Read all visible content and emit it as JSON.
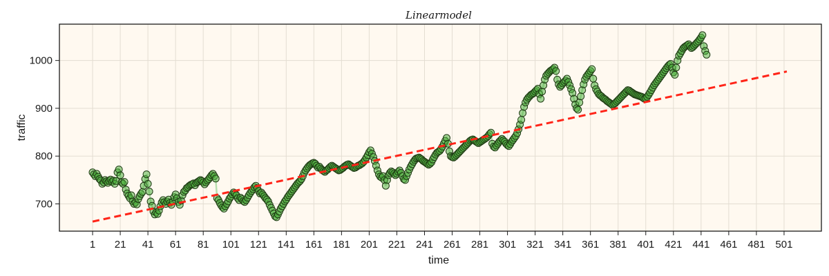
{
  "chart_data": {
    "type": "scatter",
    "title": "Linearmodel",
    "xlabel": "time",
    "ylabel": "traffic",
    "xlim": [
      -23,
      528
    ],
    "ylim": [
      643,
      1076
    ],
    "xticks": [
      1,
      21,
      41,
      61,
      81,
      101,
      121,
      141,
      161,
      181,
      201,
      221,
      241,
      261,
      281,
      301,
      321,
      341,
      361,
      381,
      401,
      421,
      441,
      461,
      481,
      501
    ],
    "yticks": [
      700,
      800,
      900,
      1000
    ],
    "grid": true,
    "background": "#fff9f0",
    "series": [
      {
        "kind": "line-markers",
        "marker_color": "#4caf3c",
        "line_color": "#9fd69a",
        "x_start": 1,
        "values": [
          766,
          762,
          758,
          763,
          757,
          752,
          749,
          742,
          745,
          750,
          747,
          744,
          748,
          751,
          746,
          749,
          742,
          748,
          766,
          772,
          760,
          745,
          742,
          746,
          730,
          722,
          717,
          712,
          718,
          705,
          700,
          703,
          699,
          710,
          716,
          721,
          725,
          738,
          752,
          762,
          742,
          726,
          705,
          696,
          684,
          678,
          682,
          679,
          686,
          695,
          703,
          708,
          704,
          700,
          705,
          709,
          702,
          698,
          705,
          714,
          720,
          712,
          704,
          698,
          707,
          718,
          725,
          728,
          733,
          735,
          738,
          740,
          741,
          743,
          739,
          744,
          746,
          748,
          750,
          748,
          745,
          741,
          745,
          749,
          752,
          756,
          760,
          763,
          758,
          753,
          712,
          708,
          702,
          697,
          693,
          690,
          695,
          700,
          705,
          711,
          715,
          720,
          724,
          722,
          718,
          712,
          708,
          713,
          710,
          706,
          704,
          708,
          713,
          718,
          723,
          727,
          731,
          735,
          738,
          733,
          727,
          722,
          724,
          720,
          716,
          712,
          709,
          705,
          698,
          692,
          686,
          680,
          674,
          672,
          678,
          684,
          690,
          695,
          700,
          705,
          709,
          714,
          718,
          722,
          726,
          730,
          734,
          738,
          742,
          745,
          748,
          752,
          758,
          765,
          770,
          774,
          778,
          781,
          783,
          785,
          786,
          784,
          780,
          776,
          778,
          774,
          771,
          769,
          767,
          770,
          772,
          775,
          778,
          780,
          778,
          776,
          774,
          772,
          770,
          771,
          773,
          775,
          778,
          780,
          782,
          783,
          781,
          779,
          777,
          775,
          776,
          778,
          780,
          781,
          783,
          785,
          788,
          792,
          797,
          802,
          808,
          812,
          805,
          798,
          790,
          780,
          770,
          762,
          757,
          755,
          758,
          750,
          738,
          750,
          760,
          765,
          768,
          766,
          763,
          760,
          763,
          767,
          770,
          765,
          758,
          752,
          750,
          758,
          765,
          772,
          778,
          783,
          788,
          792,
          795,
          796,
          797,
          795,
          793,
          790,
          788,
          786,
          784,
          782,
          784,
          787,
          793,
          798,
          803,
          807,
          809,
          811,
          815,
          820,
          826,
          832,
          838,
          826,
          810,
          800,
          798,
          797,
          799,
          802,
          805,
          808,
          811,
          814,
          817,
          820,
          823,
          826,
          829,
          832,
          834,
          835,
          833,
          831,
          829,
          827,
          829,
          831,
          833,
          835,
          837,
          839,
          842,
          846,
          849,
          826,
          820,
          818,
          822,
          826,
          830,
          833,
          836,
          833,
          830,
          826,
          823,
          821,
          825,
          830,
          834,
          838,
          842,
          848,
          856,
          866,
          876,
          890,
          903,
          912,
          918,
          922,
          925,
          928,
          930,
          932,
          935,
          938,
          941,
          930,
          920,
          935,
          948,
          960,
          968,
          972,
          975,
          978,
          980,
          982,
          985,
          978,
          960,
          950,
          945,
          948,
          952,
          955,
          958,
          962,
          955,
          948,
          940,
          932,
          920,
          908,
          900,
          897,
          912,
          925,
          938,
          950,
          960,
          966,
          970,
          974,
          978,
          982,
          962,
          948,
          940,
          935,
          930,
          927,
          925,
          922,
          920,
          918,
          915,
          913,
          911,
          909,
          907,
          909,
          911,
          914,
          917,
          920,
          923,
          926,
          929,
          932,
          935,
          938,
          937,
          935,
          933,
          931,
          929,
          928,
          927,
          926,
          925,
          924,
          922,
          920,
          921,
          924,
          928,
          933,
          938,
          943,
          948,
          952,
          956,
          960,
          964,
          968,
          972,
          976,
          980,
          984,
          988,
          991,
          993,
          985,
          975,
          970,
          985,
          1000,
          1010,
          1015,
          1020,
          1025,
          1028,
          1030,
          1032,
          1034,
          1030,
          1026,
          1028,
          1031,
          1034,
          1037,
          1040,
          1044,
          1048,
          1053,
          1030,
          1020,
          1012
        ]
      },
      {
        "kind": "dashed-line",
        "color": "#ff2418",
        "x": [
          1,
          503
        ],
        "y": [
          663,
          977
        ]
      }
    ]
  }
}
